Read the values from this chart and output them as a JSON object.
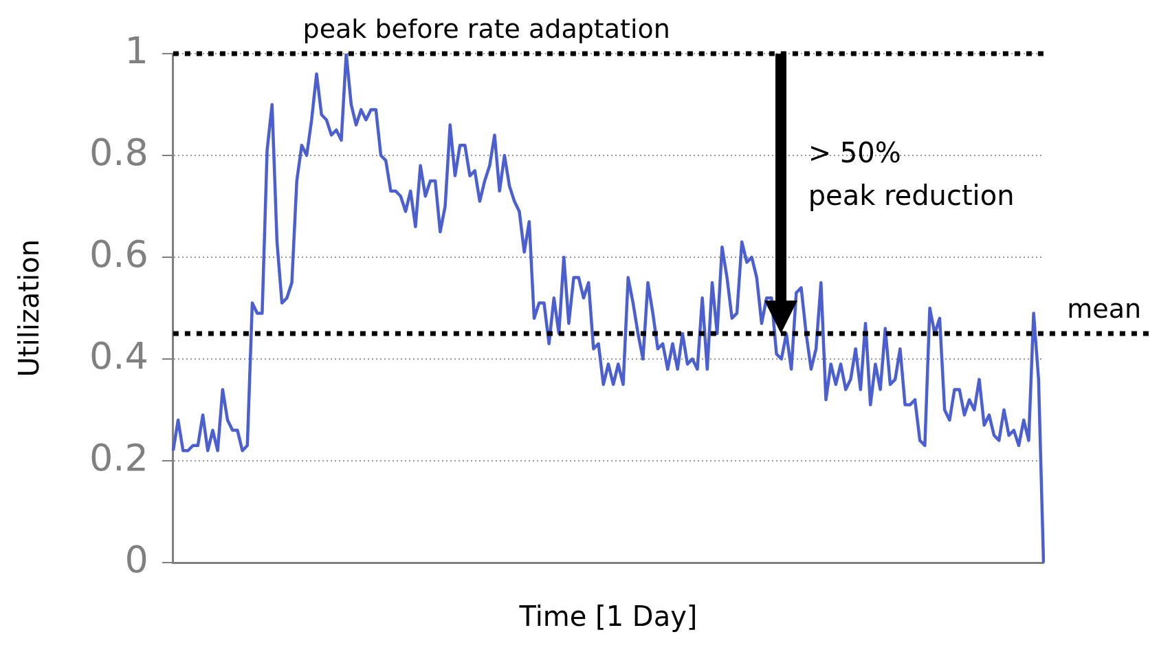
{
  "chart_data": {
    "type": "line",
    "xlabel": "Time [1 Day]",
    "ylabel": "Utilization",
    "color": "#4b5fd1",
    "marker": "none",
    "line_style": "solid",
    "grid": "y",
    "tick_labels": "y",
    "ylim": [
      0,
      1
    ],
    "yticks": [
      0,
      0.2,
      0.4,
      0.6,
      0.8,
      1
    ],
    "categories": [
      null,
      null,
      null,
      null,
      null,
      null,
      null,
      null,
      null,
      null,
      null,
      null,
      null,
      null,
      null,
      null,
      null,
      null,
      null,
      null,
      null,
      null,
      null,
      null,
      null,
      null,
      null,
      null,
      null,
      null,
      null,
      null,
      null,
      null,
      null,
      null,
      null,
      null,
      null,
      null,
      null,
      null,
      null,
      null,
      null,
      null,
      null,
      null,
      null,
      null,
      null,
      null,
      null,
      null,
      null,
      null,
      null,
      null,
      null,
      null,
      null,
      null,
      null,
      null,
      null,
      null,
      null,
      null,
      null,
      null,
      null,
      null,
      null,
      null,
      null,
      null,
      null,
      null,
      null,
      null,
      null,
      null,
      null,
      null,
      null,
      null,
      null,
      null,
      null,
      null,
      null,
      null,
      null,
      null,
      null,
      null,
      null,
      null,
      null,
      null,
      null,
      null,
      null,
      null,
      null,
      null,
      null,
      null,
      null,
      null,
      null,
      null,
      null,
      null,
      null,
      null,
      null,
      null,
      null,
      null,
      null,
      null,
      null,
      null,
      null,
      null,
      null,
      null,
      null,
      null,
      null,
      null,
      null,
      null,
      null,
      null,
      null,
      null,
      null,
      null,
      null,
      null,
      null,
      null,
      null,
      null,
      null,
      null,
      null,
      null,
      null,
      null,
      null,
      null,
      null,
      null,
      null,
      null,
      null,
      null,
      null,
      null,
      null,
      null,
      null,
      null,
      null,
      null,
      null,
      null,
      null,
      null,
      null,
      null,
      null,
      null,
      null
    ],
    "values": [
      0.22,
      0.28,
      0.22,
      0.22,
      0.23,
      0.23,
      0.29,
      0.22,
      0.26,
      0.22,
      0.34,
      0.28,
      0.26,
      0.26,
      0.22,
      0.23,
      0.51,
      0.49,
      0.49,
      0.81,
      0.9,
      0.63,
      0.51,
      0.52,
      0.55,
      0.75,
      0.82,
      0.8,
      0.87,
      0.96,
      0.88,
      0.87,
      0.84,
      0.85,
      0.83,
      1.0,
      0.9,
      0.86,
      0.89,
      0.87,
      0.89,
      0.89,
      0.8,
      0.79,
      0.73,
      0.73,
      0.72,
      0.69,
      0.73,
      0.66,
      0.78,
      0.72,
      0.75,
      0.75,
      0.65,
      0.7,
      0.86,
      0.76,
      0.82,
      0.82,
      0.76,
      0.77,
      0.71,
      0.75,
      0.78,
      0.84,
      0.73,
      0.8,
      0.74,
      0.71,
      0.69,
      0.61,
      0.67,
      0.48,
      0.51,
      0.51,
      0.43,
      0.52,
      0.45,
      0.6,
      0.47,
      0.56,
      0.56,
      0.52,
      0.55,
      0.42,
      0.43,
      0.35,
      0.39,
      0.35,
      0.39,
      0.35,
      0.56,
      0.51,
      0.45,
      0.4,
      0.55,
      0.49,
      0.42,
      0.43,
      0.38,
      0.43,
      0.38,
      0.45,
      0.39,
      0.4,
      0.38,
      0.52,
      0.38,
      0.55,
      0.45,
      0.62,
      0.56,
      0.48,
      0.49,
      0.63,
      0.59,
      0.6,
      0.56,
      0.47,
      0.52,
      0.52,
      0.41,
      0.4,
      0.45,
      0.38,
      0.53,
      0.54,
      0.45,
      0.38,
      0.42,
      0.55,
      0.32,
      0.39,
      0.35,
      0.39,
      0.34,
      0.36,
      0.42,
      0.34,
      0.47,
      0.31,
      0.39,
      0.34,
      0.46,
      0.35,
      0.36,
      0.42,
      0.31,
      0.31,
      0.32,
      0.24,
      0.23,
      0.5,
      0.45,
      0.48,
      0.3,
      0.28,
      0.34,
      0.34,
      0.29,
      0.32,
      0.3,
      0.36,
      0.27,
      0.29,
      0.25,
      0.24,
      0.3,
      0.25,
      0.26,
      0.23,
      0.28,
      0.24,
      0.49,
      0.36,
      0
    ],
    "ref_lines": [
      {
        "axis": "y",
        "value": 1,
        "label": "peak before rate adaptation",
        "color": "#000000",
        "line_style": "dotted"
      },
      {
        "axis": "y",
        "value": 0.45,
        "label": "mean",
        "color": "#000000",
        "line_style": "dotted"
      }
    ],
    "annotations": [
      "> 50%\npeak reduction"
    ]
  }
}
